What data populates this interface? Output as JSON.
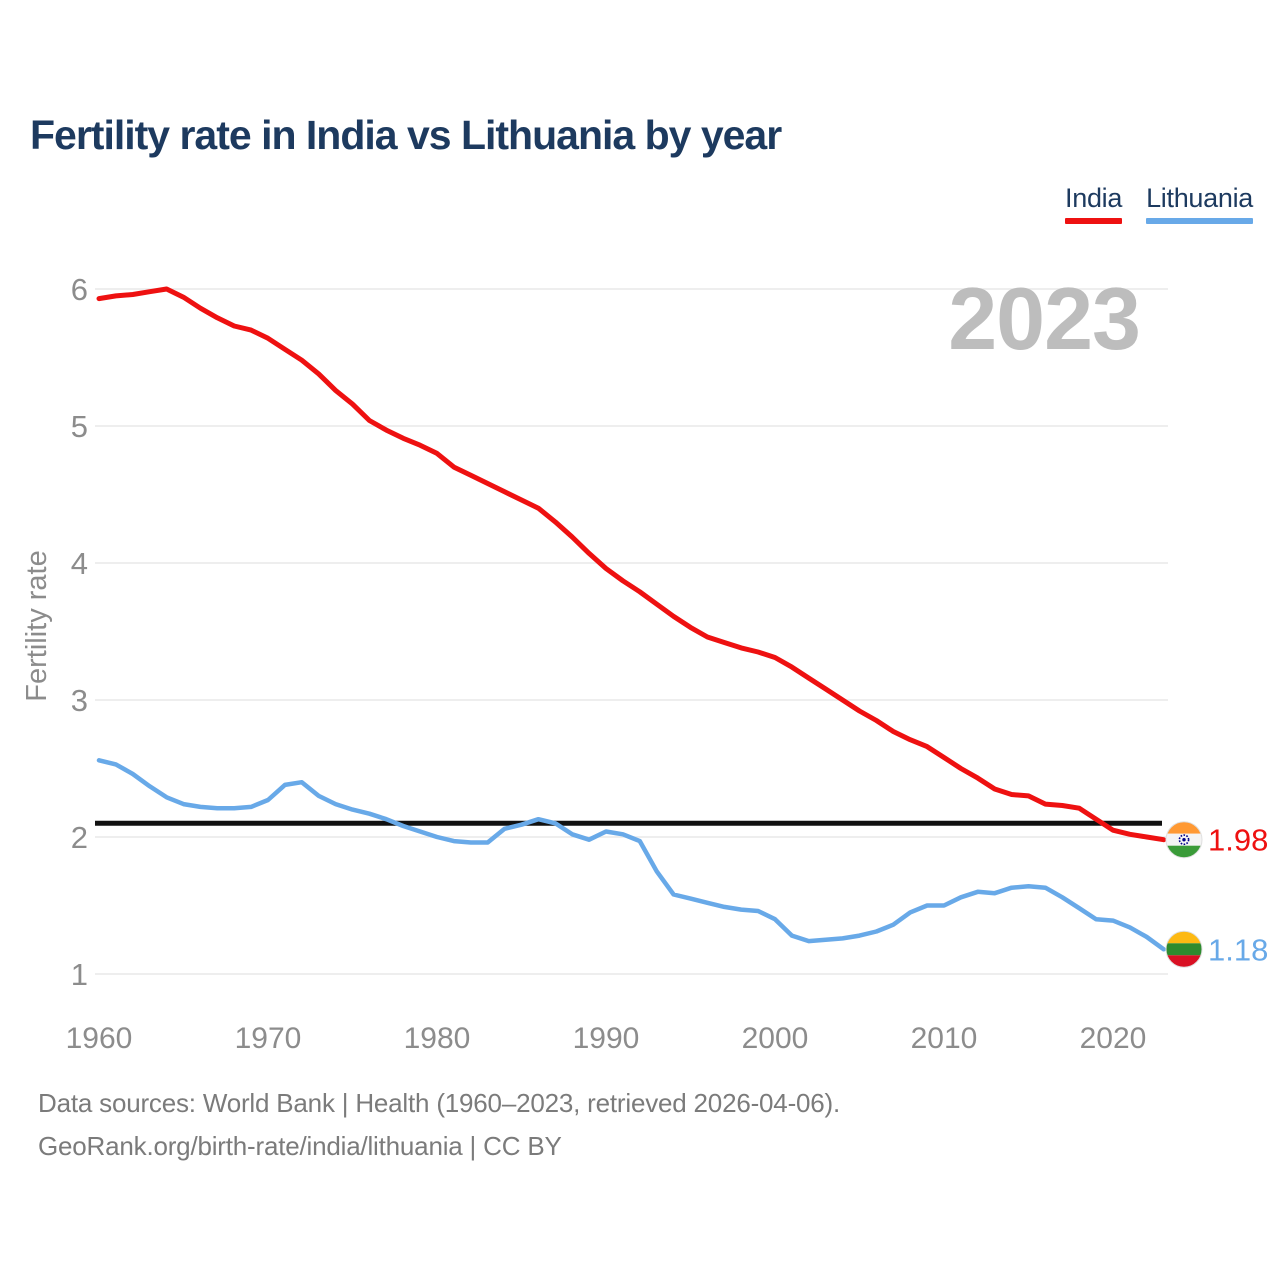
{
  "page": {
    "title": "Fertility rate in India vs Lithuania by year"
  },
  "legend": {
    "items": [
      {
        "label": "India",
        "color": "#ee1111"
      },
      {
        "label": "Lithuania",
        "color": "#68a9e8"
      }
    ]
  },
  "watermark": "2023",
  "axes": {
    "y_label": "Fertility rate",
    "y_ticks": [
      1,
      2,
      3,
      4,
      5,
      6
    ],
    "x_ticks": [
      1960,
      1970,
      1980,
      1990,
      2000,
      2010,
      2020
    ]
  },
  "chart_data": {
    "type": "line",
    "title": "Fertility rate in India vs Lithuania by year",
    "xlabel": "",
    "ylabel": "Fertility rate",
    "x_start": 1960,
    "x_end": 2023,
    "x_step": 1,
    "xlim": [
      1960,
      2023
    ],
    "ylim": [
      1,
      6
    ],
    "grid": "horizontal",
    "legend_position": "top-right",
    "reference_line": {
      "value": 2.1,
      "color": "#111111"
    },
    "series": [
      {
        "name": "India",
        "color": "#ee1111",
        "end_label": "1.98",
        "values": [
          5.93,
          5.95,
          5.96,
          5.98,
          6.0,
          5.94,
          5.86,
          5.79,
          5.73,
          5.7,
          5.64,
          5.56,
          5.48,
          5.38,
          5.26,
          5.16,
          5.04,
          4.97,
          4.91,
          4.86,
          4.8,
          4.7,
          4.64,
          4.58,
          4.52,
          4.46,
          4.4,
          4.3,
          4.19,
          4.07,
          3.96,
          3.87,
          3.79,
          3.7,
          3.61,
          3.53,
          3.46,
          3.42,
          3.38,
          3.35,
          3.31,
          3.24,
          3.16,
          3.08,
          3.0,
          2.92,
          2.85,
          2.77,
          2.71,
          2.66,
          2.58,
          2.5,
          2.43,
          2.35,
          2.31,
          2.3,
          2.24,
          2.23,
          2.21,
          2.13,
          2.05,
          2.02,
          2.0,
          1.98
        ]
      },
      {
        "name": "Lithuania",
        "color": "#68a9e8",
        "end_label": "1.18",
        "values": [
          2.56,
          2.53,
          2.46,
          2.37,
          2.29,
          2.24,
          2.22,
          2.21,
          2.21,
          2.22,
          2.27,
          2.38,
          2.4,
          2.3,
          2.24,
          2.2,
          2.17,
          2.13,
          2.08,
          2.04,
          2.0,
          1.97,
          1.96,
          1.96,
          2.06,
          2.09,
          2.13,
          2.1,
          2.02,
          1.98,
          2.04,
          2.02,
          1.97,
          1.75,
          1.58,
          1.55,
          1.52,
          1.49,
          1.47,
          1.46,
          1.4,
          1.28,
          1.24,
          1.25,
          1.26,
          1.28,
          1.31,
          1.36,
          1.45,
          1.5,
          1.5,
          1.56,
          1.6,
          1.59,
          1.63,
          1.64,
          1.63,
          1.56,
          1.48,
          1.4,
          1.39,
          1.34,
          1.27,
          1.18
        ]
      }
    ]
  },
  "footer": {
    "line1": "Data sources: World Bank | Health (1960–2023, retrieved 2026-04-06).",
    "line2": "GeoRank.org/birth-rate/india/lithuania | CC BY"
  }
}
